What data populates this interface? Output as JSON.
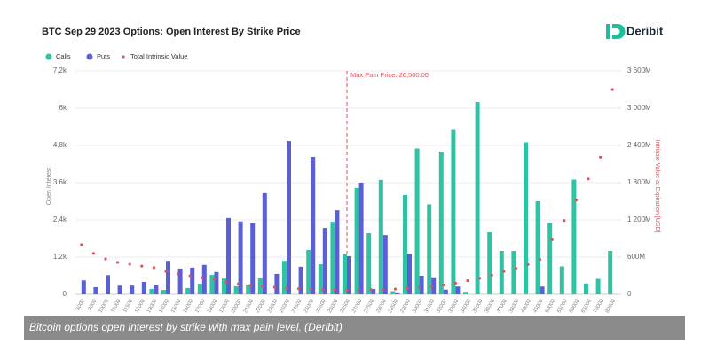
{
  "chart_data": {
    "type": "bar",
    "title": "BTC Sep 29 2023 Options: Open Interest By Strike Price",
    "logo": "Deribit",
    "caption": "Bitcoin options open interest by strike with max pain level. (Deribit)",
    "y_label": "Open Interest",
    "y2_label": "Intrinsic Value at Expiration [USD]",
    "categories": [
      "5000",
      "8000",
      "10000",
      "11000",
      "11500",
      "12000",
      "13000",
      "14000",
      "15000",
      "16000",
      "17000",
      "18000",
      "19000",
      "20000",
      "21000",
      "22000",
      "23000",
      "24000",
      "24500",
      "25000",
      "25500",
      "26000",
      "26500",
      "27000",
      "27500",
      "28000",
      "28500",
      "29000",
      "30000",
      "31000",
      "32000",
      "33000",
      "34000",
      "35000",
      "36000",
      "37000",
      "38000",
      "40000",
      "45000",
      "50000",
      "55000",
      "60000",
      "65000",
      "70000",
      "80000"
    ],
    "series": [
      {
        "name": "Calls",
        "color": "#2fc3a4",
        "values": [
          0,
          0,
          0,
          0,
          0,
          0,
          170,
          140,
          0,
          200,
          340,
          630,
          510,
          260,
          310,
          520,
          0,
          1080,
          0,
          1430,
          970,
          2340,
          1290,
          3430,
          1970,
          3690,
          100,
          3200,
          4700,
          2900,
          4600,
          5300,
          80,
          6200,
          2000,
          1400,
          1400,
          4900,
          3000,
          2300,
          900,
          3700,
          350,
          500,
          1400
        ]
      },
      {
        "name": "Puts",
        "color": "#5a5fd6",
        "values": [
          450,
          230,
          620,
          280,
          280,
          400,
          310,
          1080,
          830,
          860,
          950,
          720,
          2460,
          2350,
          2290,
          3260,
          660,
          4940,
          890,
          4430,
          2140,
          2710,
          1230,
          3600,
          170,
          1910,
          60,
          1300,
          600,
          550,
          150,
          250,
          0,
          0,
          0,
          0,
          0,
          0,
          250,
          0,
          0,
          0,
          0,
          0,
          0
        ]
      },
      {
        "name": "Total Intrinsic Value",
        "color": "#e0525a",
        "type": "scatter",
        "axis": "y2",
        "values": [
          800,
          660,
          570,
          515,
          485,
          455,
          430,
          370,
          330,
          300,
          270,
          245,
          200,
          170,
          145,
          130,
          115,
          100,
          90,
          80,
          75,
          72,
          70,
          72,
          75,
          78,
          85,
          95,
          110,
          125,
          150,
          180,
          220,
          260,
          310,
          370,
          420,
          480,
          560,
          880,
          1190,
          1520,
          1860,
          2210,
          3300
        ]
      }
    ],
    "ylim": [
      0,
      7200
    ],
    "yticks": [
      {
        "value": 0,
        "label": "0"
      },
      {
        "value": 1200,
        "label": "1.2k"
      },
      {
        "value": 2400,
        "label": "2.4k"
      },
      {
        "value": 3600,
        "label": "3.6k"
      },
      {
        "value": 4800,
        "label": "4.8k"
      },
      {
        "value": 6000,
        "label": "6k"
      },
      {
        "value": 7200,
        "label": "7.2k"
      }
    ],
    "y2lim": [
      0,
      3600
    ],
    "y2ticks": [
      {
        "value": 0,
        "label": "0"
      },
      {
        "value": 600,
        "label": "600M"
      },
      {
        "value": 1200,
        "label": "1 200M"
      },
      {
        "value": 1800,
        "label": "1 800M"
      },
      {
        "value": 2400,
        "label": "2 400M"
      },
      {
        "value": 3000,
        "label": "3 000M"
      },
      {
        "value": 3600,
        "label": "3 600M"
      }
    ],
    "grid": true,
    "max_pain": {
      "label": "Max Pain Price: 26,500.00",
      "x": "26500",
      "color": "#e0525a"
    }
  }
}
